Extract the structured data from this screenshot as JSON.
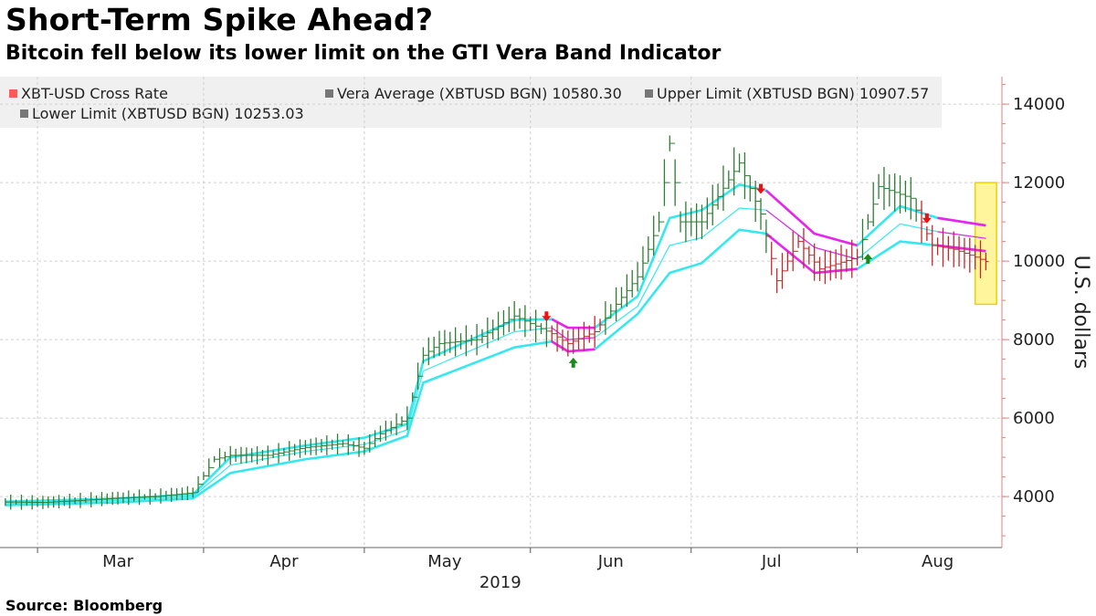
{
  "title": "Short-Term Spike Ahead?",
  "subtitle": "Bitcoin fell below its lower limit on the GTI Vera Band Indicator",
  "source": "Source: Bloomberg",
  "legend": [
    {
      "label": "XBT-USD Cross Rate",
      "color": "#ff5a5a"
    },
    {
      "label": "Vera Average (XBTUSD BGN) 10580.30",
      "color": "#777777"
    },
    {
      "label": "Upper Limit (XBTUSD BGN) 10907.57",
      "color": "#777777"
    },
    {
      "label": "Lower Limit (XBTUSD BGN) 10253.03",
      "color": "#777777"
    }
  ],
  "colors": {
    "up_bar": "#2e7d32",
    "down_bar": "#c62828",
    "band_uptrend": "#35e8f0",
    "band_downtrend": "#ee22ee",
    "highlight": "#fff59d",
    "axis": "#e08080"
  },
  "chart_data": {
    "type": "line",
    "title": "Short-Term Spike Ahead?",
    "subtitle": "Bitcoin fell below its lower limit on the GTI Vera Band Indicator",
    "ylabel": "U.S. dollars",
    "ylim": [
      2700,
      14700
    ],
    "y_ticks": [
      4000,
      6000,
      8000,
      10000,
      12000,
      14000
    ],
    "x_ticks": [
      "Mar",
      "Apr",
      "May",
      "Jun",
      "Jul",
      "Aug"
    ],
    "x_year_label": "2019",
    "grid": true,
    "legend_position": "top",
    "series": [
      {
        "name": "XBT-USD Cross Rate",
        "style": "high-low bars",
        "points": [
          [
            "Feb 22",
            3860
          ],
          [
            "Mar 1",
            3850
          ],
          [
            "Mar 8",
            3900
          ],
          [
            "Mar 15",
            3960
          ],
          [
            "Mar 22",
            4000
          ],
          [
            "Mar 29",
            4100
          ],
          [
            "Apr 2",
            4950
          ],
          [
            "Apr 5",
            5050
          ],
          [
            "Apr 12",
            5050
          ],
          [
            "Apr 19",
            5250
          ],
          [
            "Apr 26",
            5350
          ],
          [
            "Apr 30",
            5230
          ],
          [
            "May 3",
            5600
          ],
          [
            "May 8",
            6000
          ],
          [
            "May 11",
            7600
          ],
          [
            "May 14",
            7900
          ],
          [
            "May 21",
            8000
          ],
          [
            "May 28",
            8600
          ],
          [
            "Jun 4",
            8150
          ],
          [
            "Jun 7",
            7900
          ],
          [
            "Jun 12",
            8200
          ],
          [
            "Jun 16",
            8900
          ],
          [
            "Jun 20",
            9600
          ],
          [
            "Jun 24",
            11000
          ],
          [
            "Jun 26",
            13000
          ],
          [
            "Jun 28",
            11000
          ],
          [
            "Jul 2",
            11000
          ],
          [
            "Jul 9",
            12500
          ],
          [
            "Jul 13",
            11200
          ],
          [
            "Jul 16",
            9500
          ],
          [
            "Jul 20",
            10500
          ],
          [
            "Jul 24",
            9800
          ],
          [
            "Jul 31",
            10100
          ],
          [
            "Aug 4",
            11900
          ],
          [
            "Aug 10",
            11600
          ],
          [
            "Aug 14",
            10400
          ],
          [
            "Aug 18",
            10300
          ],
          [
            "Aug 22",
            10100
          ],
          [
            "Aug 24",
            9990
          ]
        ]
      },
      {
        "name": "Vera Average (XBTUSD BGN) 10580.30",
        "points": [
          [
            "Feb 22",
            3820
          ],
          [
            "Mar 15",
            3900
          ],
          [
            "Mar 29",
            4000
          ],
          [
            "Apr 5",
            4800
          ],
          [
            "Apr 19",
            5150
          ],
          [
            "Apr 30",
            5330
          ],
          [
            "May 8",
            5700
          ],
          [
            "May 11",
            7200
          ],
          [
            "May 28",
            8200
          ],
          [
            "Jun 4",
            8300
          ],
          [
            "Jun 7",
            8000
          ],
          [
            "Jun 12",
            8050
          ],
          [
            "Jun 20",
            8850
          ],
          [
            "Jun 26",
            10400
          ],
          [
            "Jul 2",
            10600
          ],
          [
            "Jul 9",
            11350
          ],
          [
            "Jul 14",
            11300
          ],
          [
            "Jul 23",
            10350
          ],
          [
            "Jul 31",
            10050
          ],
          [
            "Aug 8",
            10950
          ],
          [
            "Aug 15",
            10750
          ],
          [
            "Aug 24",
            10580
          ]
        ]
      },
      {
        "name": "Upper Limit (XBTUSD BGN) 10907.57",
        "points": [
          [
            "Feb 22",
            3870
          ],
          [
            "Mar 15",
            3950
          ],
          [
            "Mar 29",
            4050
          ],
          [
            "Apr 5",
            5000
          ],
          [
            "Apr 19",
            5300
          ],
          [
            "Apr 30",
            5500
          ],
          [
            "May 8",
            5850
          ],
          [
            "May 11",
            7450
          ],
          [
            "May 28",
            8500
          ],
          [
            "Jun 4",
            8520
          ],
          [
            "Jun 7",
            8300
          ],
          [
            "Jun 12",
            8300
          ],
          [
            "Jun 20",
            9100
          ],
          [
            "Jun 26",
            11100
          ],
          [
            "Jul 2",
            11300
          ],
          [
            "Jul 9",
            11950
          ],
          [
            "Jul 14",
            11800
          ],
          [
            "Jul 23",
            10700
          ],
          [
            "Jul 31",
            10400
          ],
          [
            "Aug 8",
            11400
          ],
          [
            "Aug 15",
            11100
          ],
          [
            "Aug 24",
            10908
          ]
        ]
      },
      {
        "name": "Lower Limit (XBTUSD BGN) 10253.03",
        "points": [
          [
            "Feb 22",
            3780
          ],
          [
            "Mar 15",
            3850
          ],
          [
            "Mar 29",
            3950
          ],
          [
            "Apr 5",
            4600
          ],
          [
            "Apr 19",
            4950
          ],
          [
            "Apr 30",
            5150
          ],
          [
            "May 8",
            5550
          ],
          [
            "May 11",
            6900
          ],
          [
            "May 28",
            7800
          ],
          [
            "Jun 4",
            7950
          ],
          [
            "Jun 7",
            7700
          ],
          [
            "Jun 12",
            7750
          ],
          [
            "Jun 20",
            8650
          ],
          [
            "Jun 26",
            9700
          ],
          [
            "Jul 2",
            9950
          ],
          [
            "Jul 9",
            10800
          ],
          [
            "Jul 14",
            10700
          ],
          [
            "Jul 23",
            9700
          ],
          [
            "Jul 31",
            9800
          ],
          [
            "Aug 8",
            10500
          ],
          [
            "Aug 15",
            10400
          ],
          [
            "Aug 24",
            10253
          ]
        ]
      }
    ],
    "annotations": [
      {
        "type": "up-arrow",
        "date": "Jun 8",
        "value": 7400,
        "color": "#1b8a1b"
      },
      {
        "type": "down-arrow",
        "date": "Jun 3",
        "value": 8600,
        "color": "#ee1111"
      },
      {
        "type": "down-arrow",
        "date": "Jul 13",
        "value": 11850,
        "color": "#ee1111"
      },
      {
        "type": "down-arrow",
        "date": "Aug 13",
        "value": 11100,
        "color": "#ee1111"
      },
      {
        "type": "up-arrow",
        "date": "Aug 2",
        "value": 10050,
        "color": "#1b8a1b"
      },
      {
        "type": "highlight",
        "start": "Aug 22",
        "end": "Aug 26",
        "low": 8900,
        "high": 12000,
        "color": "#fff59d"
      }
    ]
  }
}
